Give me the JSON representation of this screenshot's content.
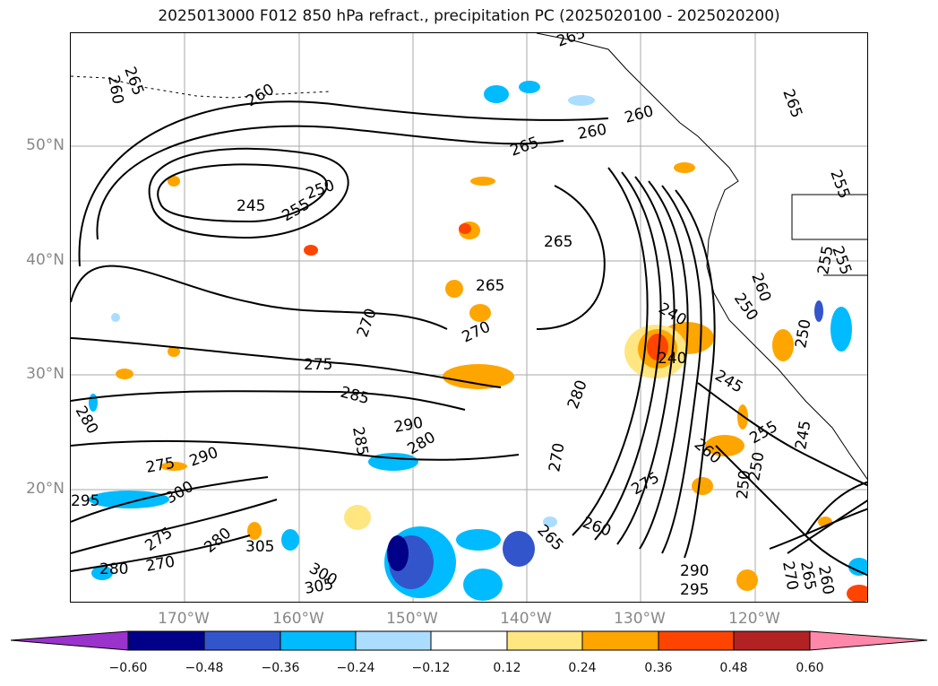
{
  "title": "2025013000 F012 850 hPa refract., precipitation PC (2025020100 - 2025020200)",
  "latitude_labels": [
    "50°N",
    "40°N",
    "30°N",
    "20°N"
  ],
  "longitude_labels": [
    "170°W",
    "160°W",
    "150°W",
    "140°W",
    "130°W",
    "120°W"
  ],
  "colorbar": {
    "ticks": [
      "−0.60",
      "−0.48",
      "−0.36",
      "−0.24",
      "−0.12",
      "0.12",
      "0.24",
      "0.36",
      "0.48",
      "0.60"
    ],
    "colors": [
      "#9933cc",
      "#000088",
      "#3355cc",
      "#00bbff",
      "#aaddff",
      "#ffffff",
      "#ffe680",
      "#ffa500",
      "#ff4400",
      "#b22222",
      "#ff88aa"
    ]
  },
  "contour_labels": [
    "265",
    "260",
    "260",
    "245",
    "250",
    "255",
    "265",
    "260",
    "260",
    "265",
    "265",
    "270",
    "270",
    "275",
    "285",
    "280",
    "290",
    "285",
    "280",
    "275",
    "290",
    "295",
    "300",
    "275",
    "280",
    "280",
    "270",
    "305",
    "305",
    "300",
    "240",
    "240",
    "245",
    "250",
    "255",
    "260",
    "265",
    "275",
    "270",
    "260",
    "265",
    "280",
    "290",
    "295",
    "270",
    "265",
    "260",
    "250",
    "245",
    "250",
    "255",
    "250",
    "255",
    "255",
    "260",
    "265"
  ],
  "precip_colors": {
    "orange": "#ffa500",
    "light_orange": "#ffe680",
    "red": "#ff4400",
    "cyan": "#00bbff",
    "light_blue": "#aaddff",
    "blue": "#3355cc",
    "navy": "#000088"
  }
}
